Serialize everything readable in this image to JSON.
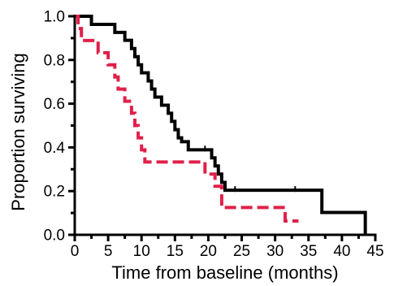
{
  "chart_data": {
    "type": "line",
    "title": "",
    "xlabel": "Time from baseline (months)",
    "ylabel": "Proportion surviving",
    "xlim": [
      0,
      45
    ],
    "ylim": [
      0,
      1.0
    ],
    "x_ticks": [
      0,
      5,
      10,
      15,
      20,
      25,
      30,
      35,
      40,
      45
    ],
    "y_ticks": [
      0.0,
      0.2,
      0.4,
      0.6,
      0.8,
      1.0
    ],
    "y_tick_labels": [
      "0.0",
      "0.2",
      "0.4",
      "0.6",
      "0.8",
      "1.0"
    ],
    "grid": false,
    "legend": "none",
    "series": [
      {
        "style": "solid",
        "color": "#000000",
        "steps": [
          [
            0,
            1.0
          ],
          [
            2.5,
            0.963
          ],
          [
            5.5,
            0.963
          ],
          [
            6,
            0.926
          ],
          [
            7,
            0.926
          ],
          [
            7.5,
            0.89
          ],
          [
            8.5,
            0.852
          ],
          [
            9,
            0.815
          ],
          [
            9.5,
            0.778
          ],
          [
            10,
            0.741
          ],
          [
            11,
            0.704
          ],
          [
            11.5,
            0.667
          ],
          [
            12,
            0.63
          ],
          [
            13,
            0.593
          ],
          [
            14,
            0.556
          ],
          [
            14.5,
            0.519
          ],
          [
            15,
            0.481
          ],
          [
            15.5,
            0.444
          ],
          [
            16,
            0.426
          ],
          [
            17,
            0.389
          ],
          [
            20.5,
            0.352
          ],
          [
            21,
            0.315
          ],
          [
            21.5,
            0.278
          ],
          [
            22,
            0.24
          ],
          [
            22.5,
            0.204
          ],
          [
            37,
            0.102
          ],
          [
            43.5,
            0.0
          ]
        ],
        "end_x": 43.5,
        "censored": [
          [
            19.5,
            0.389
          ],
          [
            24,
            0.204
          ],
          [
            33,
            0.204
          ]
        ]
      },
      {
        "style": "dashed",
        "color": "#e0204a",
        "steps": [
          [
            0,
            1.0
          ],
          [
            0.5,
            0.944
          ],
          [
            1,
            0.889
          ],
          [
            3,
            0.889
          ],
          [
            3.5,
            0.833
          ],
          [
            5,
            0.778
          ],
          [
            6,
            0.722
          ],
          [
            6.5,
            0.667
          ],
          [
            7.5,
            0.611
          ],
          [
            8.5,
            0.556
          ],
          [
            9,
            0.5
          ],
          [
            9.5,
            0.444
          ],
          [
            10,
            0.389
          ],
          [
            10.5,
            0.333
          ],
          [
            12.5,
            0.333
          ],
          [
            16,
            0.333
          ],
          [
            19.5,
            0.278
          ],
          [
            21,
            0.222
          ],
          [
            22,
            0.125
          ],
          [
            31.5,
            0.063
          ]
        ],
        "end_x": 33.5,
        "censored": []
      }
    ]
  }
}
